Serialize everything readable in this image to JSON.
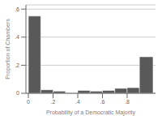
{
  "chart_data": {
    "type": "histogram",
    "xlabel": "Probability of a Democratic Majority",
    "ylabel": "Proportion of Chambers",
    "color": "#595959",
    "bins": [
      0.0,
      0.1,
      0.2,
      0.3,
      0.4,
      0.5,
      0.6,
      0.7,
      0.8,
      0.9,
      1.01
    ],
    "values": [
      0.55,
      0.025,
      0.015,
      0.0,
      0.02,
      0.015,
      0.02,
      0.035,
      0.04,
      0.26
    ],
    "xlim": [
      -0.02,
      1.03
    ],
    "ylim": [
      0,
      0.63
    ],
    "xticks": [
      0,
      {
        "value": 0.2,
        "label": ".2"
      },
      {
        "value": 0.4,
        "label": ".4"
      },
      {
        "value": 0.6,
        "label": ".6"
      },
      {
        "value": 0.8,
        "label": ".8"
      }
    ],
    "yticks": [
      0,
      {
        "value": 0.2,
        "label": ".2"
      },
      {
        "value": 0.4,
        "label": ".4"
      },
      {
        "value": 0.6,
        "label": ".6"
      }
    ],
    "grid": true
  }
}
